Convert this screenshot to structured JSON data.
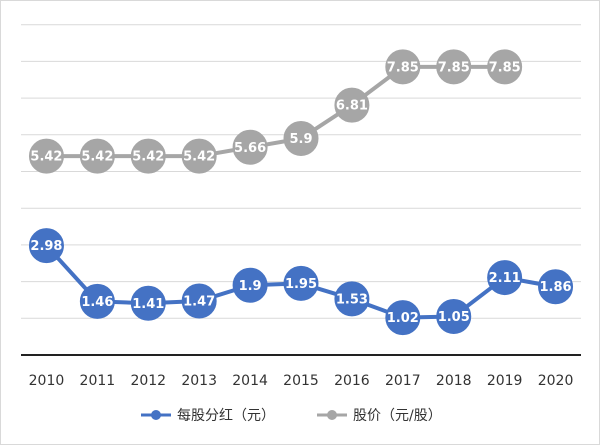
{
  "chart_data": {
    "type": "line",
    "categories": [
      "2010",
      "2011",
      "2012",
      "2013",
      "2014",
      "2015",
      "2016",
      "2017",
      "2018",
      "2019",
      "2020"
    ],
    "series": [
      {
        "name": "每股分红（元）",
        "color": "#4472c4",
        "values": [
          2.98,
          1.46,
          1.41,
          1.47,
          1.9,
          1.95,
          1.53,
          1.02,
          1.05,
          2.11,
          1.86
        ],
        "labels": [
          "2.98",
          "1.46",
          "1.41",
          "1.47",
          "1.9",
          "1.95",
          "1.53",
          "1.02",
          "1.05",
          "2.11",
          "1.86"
        ]
      },
      {
        "name": "股价（元/股）",
        "color": "#a6a6a6",
        "values": [
          5.42,
          5.42,
          5.42,
          5.42,
          5.66,
          5.9,
          6.81,
          7.85,
          7.85,
          7.85,
          null
        ],
        "labels": [
          "5.42",
          "5.42",
          "5.42",
          "5.42",
          "5.66",
          "5.9",
          "6.81",
          "7.85",
          "7.85",
          "7.85",
          ""
        ]
      }
    ],
    "ylim": [
      0,
      9
    ],
    "grid": true,
    "legend_position": "bottom"
  }
}
